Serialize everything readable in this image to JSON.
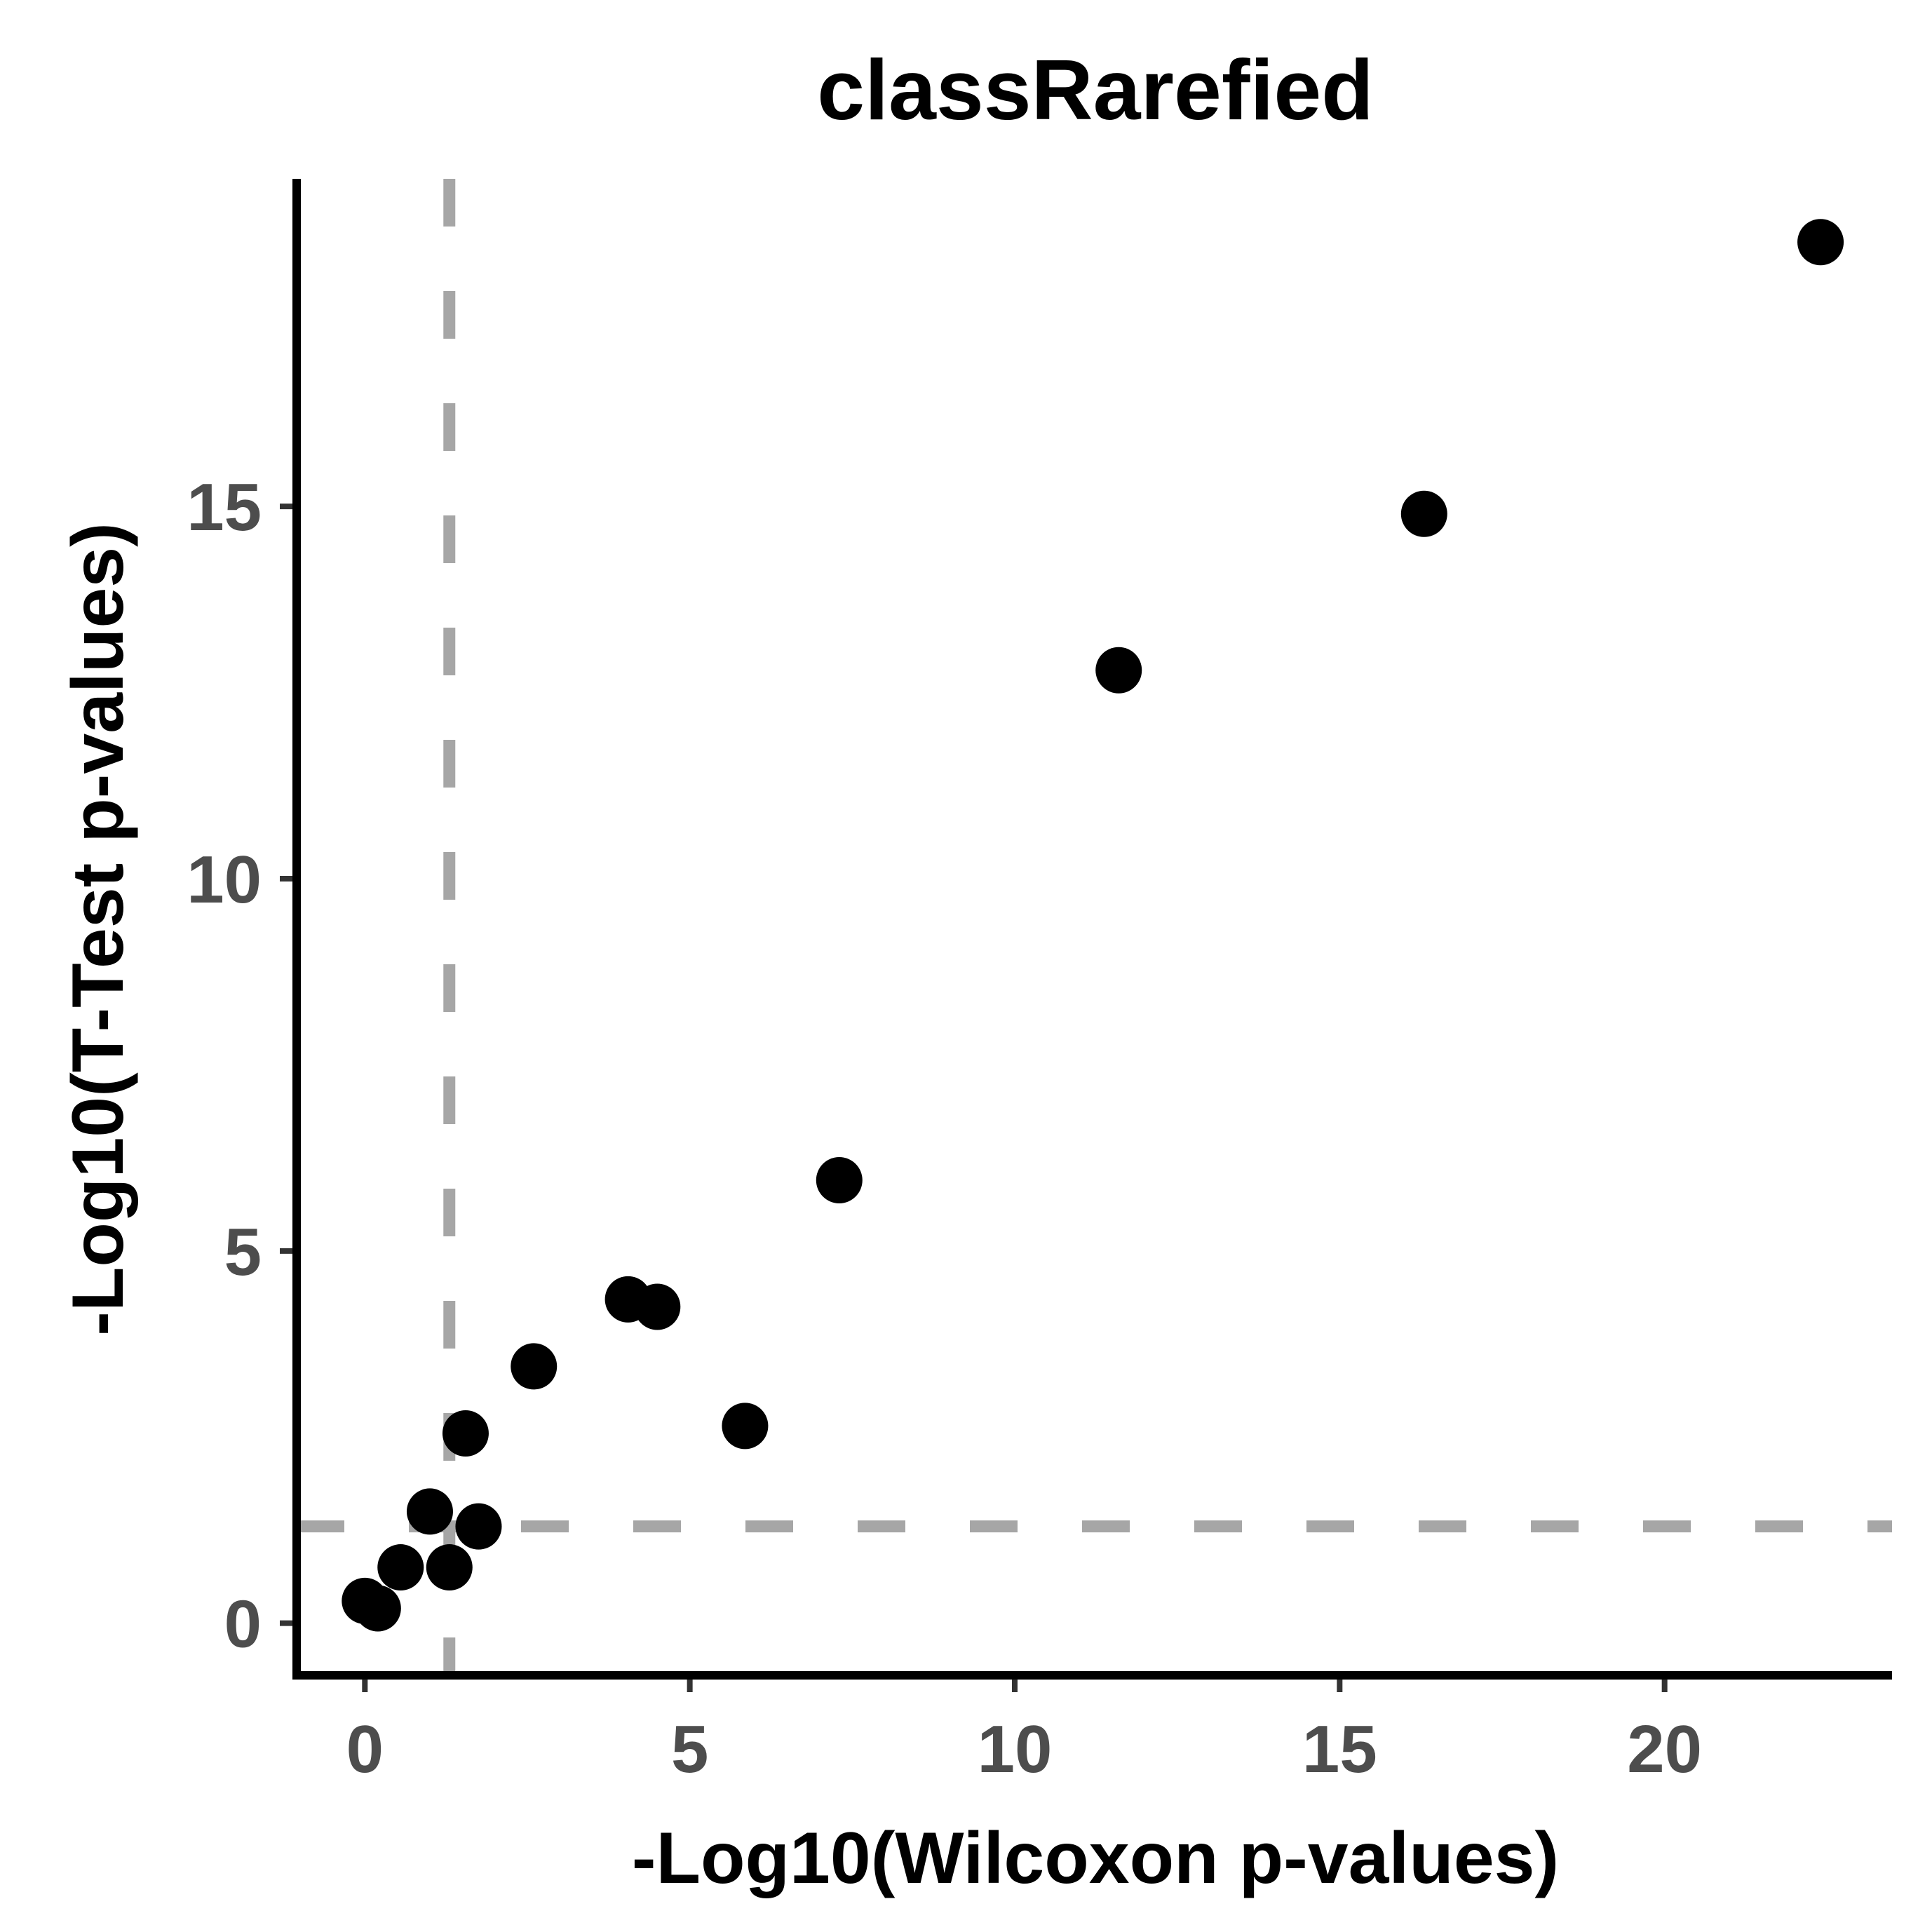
{
  "chart_data": {
    "type": "scatter",
    "title": "classRarefied",
    "xlabel": "-Log10(Wilcoxon p-values)",
    "ylabel": "-Log10(T-Test p-values)",
    "xlim": [
      -1.05,
      23.5
    ],
    "ylim": [
      -0.7,
      19.4
    ],
    "x_ticks": [
      0,
      5,
      10,
      15,
      20
    ],
    "y_ticks": [
      0,
      5,
      10,
      15
    ],
    "x_tick_labels": [
      "0",
      "5",
      "10",
      "15",
      "20"
    ],
    "y_tick_labels": [
      "0",
      "5",
      "10",
      "15"
    ],
    "grid": false,
    "legend": "none",
    "reference_lines": {
      "vertical_x": 1.3,
      "horizontal_y": 1.3,
      "style": "dashed",
      "color": "#a6a6a6"
    },
    "point_color": "#000000",
    "axis_color": "#000000",
    "tick_label_color": "#4d4d4d",
    "points": [
      {
        "x": 0.0,
        "y": 0.3
      },
      {
        "x": 0.2,
        "y": 0.2
      },
      {
        "x": 0.55,
        "y": 0.75
      },
      {
        "x": 1.0,
        "y": 1.5
      },
      {
        "x": 1.3,
        "y": 0.75
      },
      {
        "x": 1.55,
        "y": 2.55
      },
      {
        "x": 1.75,
        "y": 1.3
      },
      {
        "x": 2.6,
        "y": 3.45
      },
      {
        "x": 4.05,
        "y": 4.35
      },
      {
        "x": 4.5,
        "y": 4.25
      },
      {
        "x": 5.85,
        "y": 2.65
      },
      {
        "x": 7.3,
        "y": 5.95
      },
      {
        "x": 11.6,
        "y": 12.8
      },
      {
        "x": 16.3,
        "y": 14.9
      },
      {
        "x": 22.4,
        "y": 18.55
      }
    ]
  }
}
